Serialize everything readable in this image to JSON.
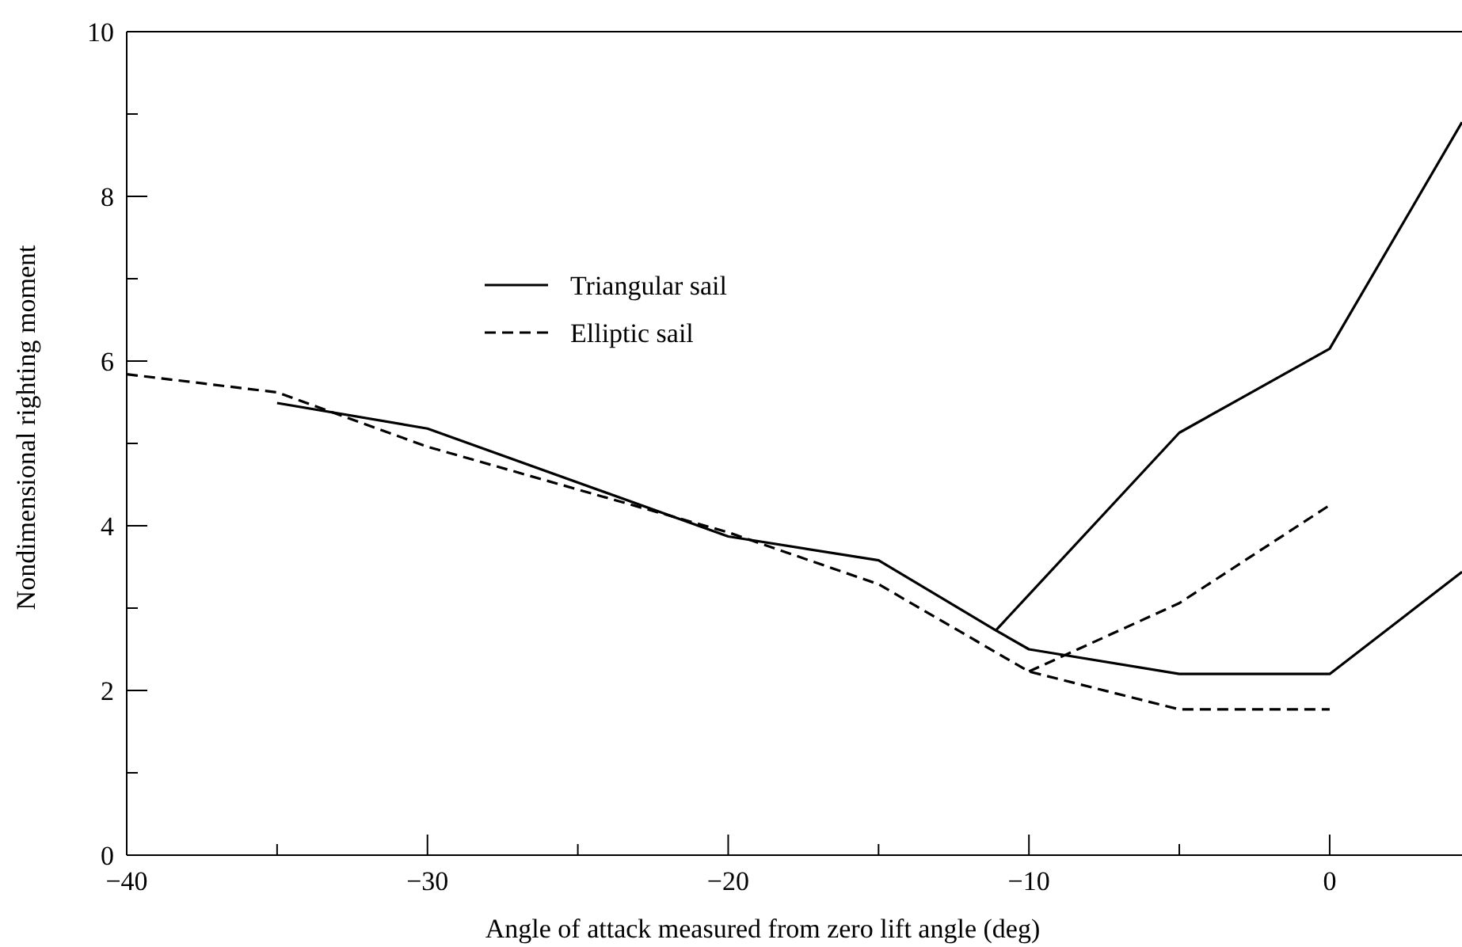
{
  "chart_data": {
    "type": "line",
    "xlabel": "Angle of attack measured from zero lift angle (deg)",
    "ylabel": "Nondimensional righting moment",
    "xlim": [
      -40,
      4.4
    ],
    "xticks": [
      -40,
      {
        "value": -35,
        "label": null
      },
      -30,
      {
        "value": -25,
        "label": null
      },
      -20,
      {
        "value": -15,
        "label": null
      },
      -10,
      {
        "value": -5,
        "label": null
      },
      0
    ],
    "ylim": [
      0,
      10
    ],
    "yticks": [
      0,
      {
        "value": 1,
        "label": null
      },
      2,
      {
        "value": 3,
        "label": null
      },
      4,
      {
        "value": 5,
        "label": null
      },
      6,
      {
        "value": 7,
        "label": null
      },
      8,
      {
        "value": 9,
        "label": null
      },
      10
    ],
    "legend": "top",
    "grid": false,
    "series": [
      {
        "name": "Triangular sail",
        "color": "#000000",
        "line_style": "solid",
        "x": [
          -35,
          -30,
          -20,
          -15,
          -11.1,
          -10,
          -5,
          0,
          4.4
        ],
        "values": [
          5.49,
          5.18,
          3.87,
          3.58,
          2.73,
          2.5,
          2.2,
          2.2,
          3.44
        ]
      },
      {
        "color": "#000000",
        "line_style": "solid",
        "x": [
          -11.1,
          -5,
          0,
          4.4
        ],
        "values": [
          2.73,
          5.13,
          6.15,
          8.9
        ]
      },
      {
        "name": "Elliptic sail",
        "color": "#000000",
        "line_style": "dashed",
        "x": [
          -40,
          -35,
          -30,
          -20,
          -15,
          -10,
          -5,
          0
        ],
        "values": [
          5.84,
          5.62,
          4.96,
          3.92,
          3.29,
          2.23,
          1.77,
          1.77
        ]
      },
      {
        "color": "#000000",
        "line_style": "dashed",
        "x": [
          -10,
          -5,
          0
        ],
        "values": [
          2.23,
          3.06,
          4.25
        ]
      }
    ]
  }
}
